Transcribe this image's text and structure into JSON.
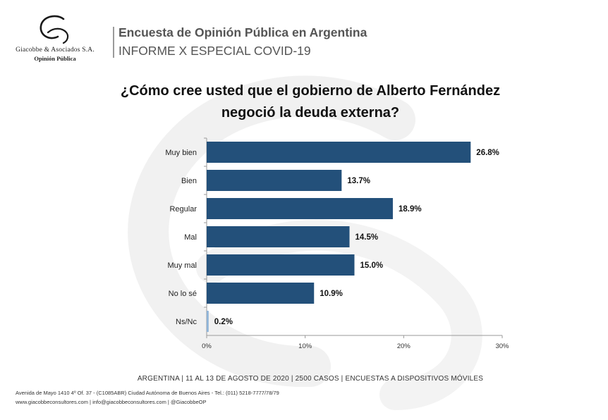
{
  "logo": {
    "company": "Giacobbe & Asociados S.A.",
    "subtitle": "Opinión Pública"
  },
  "header": {
    "title": "Encuesta de Opinión Pública en Argentina",
    "subtitle": "INFORME X ESPECIAL COVID-19"
  },
  "question": {
    "line1": "¿Cómo cree usted que el gobierno de Alberto Fernández",
    "line2": "negoció la deuda externa?"
  },
  "chart_data": {
    "type": "bar",
    "orientation": "horizontal",
    "categories": [
      "Muy bien",
      "Bien",
      "Regular",
      "Mal",
      "Muy mal",
      "No lo sé",
      "Ns/Nc"
    ],
    "values": [
      26.8,
      13.7,
      18.9,
      14.5,
      15.0,
      10.9,
      0.2
    ],
    "value_labels": [
      "26.8%",
      "13.7%",
      "18.9%",
      "14.5%",
      "15.0%",
      "10.9%",
      "0.2%"
    ],
    "xlim": [
      0,
      30
    ],
    "x_ticks": [
      0,
      10,
      20,
      30
    ],
    "x_tick_labels": [
      "0%",
      "10%",
      "20%",
      "30%"
    ],
    "grid": false,
    "colors": {
      "bar": "#23507a",
      "bar_last": "#8fb4d8"
    }
  },
  "footer": {
    "source": "ARGENTINA | 11 AL 13 DE AGOSTO DE 2020 | 2500 CASOS | ENCUESTAS A DISPOSITIVOS MÓVILES",
    "address": "Avenida de Mayo 1410 4º Of. 37 - (C1085ABR) Ciudad Autónoma de Buenos Aires - Tel.: (011) 5218-7777/78/79",
    "web": "www.giacobbeconsultores.com | info@giacobbeconsultores.com | @GiacobbeOP"
  }
}
